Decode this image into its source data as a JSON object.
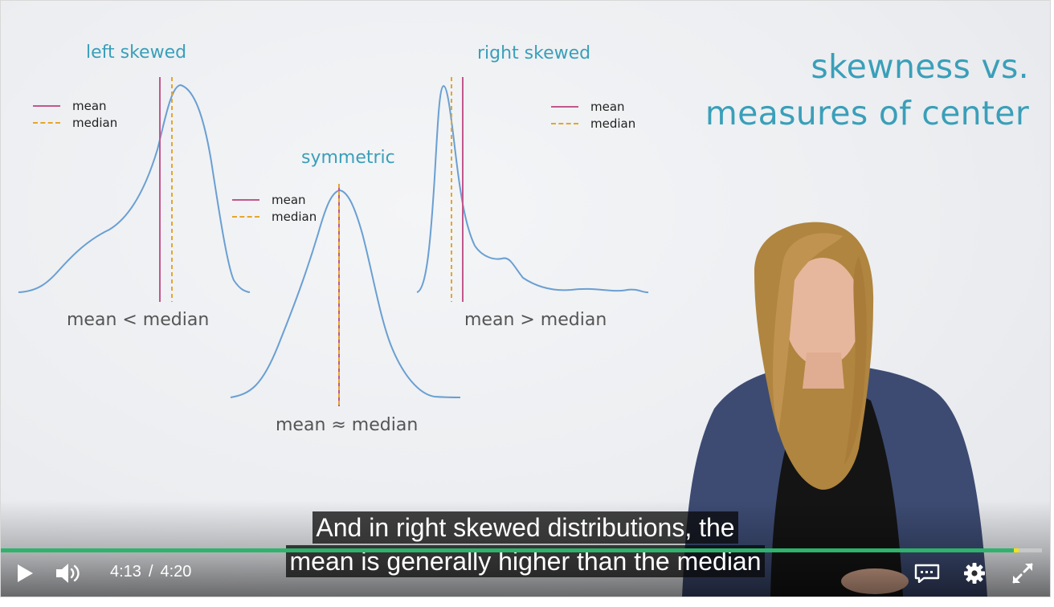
{
  "slide": {
    "title_line1": "skewness vs.",
    "title_line2": "measures of center",
    "panels": {
      "left": {
        "label": "left skewed",
        "comparison": "mean < median",
        "legend_mean": "mean",
        "legend_median": "median"
      },
      "symmetric": {
        "label": "symmetric",
        "comparison": "mean ≈ median",
        "legend_mean": "mean",
        "legend_median": "median"
      },
      "right": {
        "label": "right skewed",
        "comparison": "mean > median",
        "legend_mean": "mean",
        "legend_median": "median"
      }
    },
    "colors": {
      "accent": "#3a9fb9",
      "mean": "#c2578c",
      "median": "#e5a62a",
      "curve": "#6a9fd2"
    }
  },
  "captions": {
    "line1": "And in right skewed distributions, the",
    "line2": "mean is generally higher than the median"
  },
  "player": {
    "current_time": "4:13",
    "separator": "/",
    "duration": "4:20",
    "progress_fraction": 0.973,
    "icons": {
      "play": "play-icon",
      "volume": "volume-icon",
      "captions": "captions-icon",
      "settings": "gear-icon",
      "fullscreen": "fullscreen-icon"
    },
    "colors": {
      "progress": "#2fb36c",
      "marker": "#f2e40f"
    }
  }
}
